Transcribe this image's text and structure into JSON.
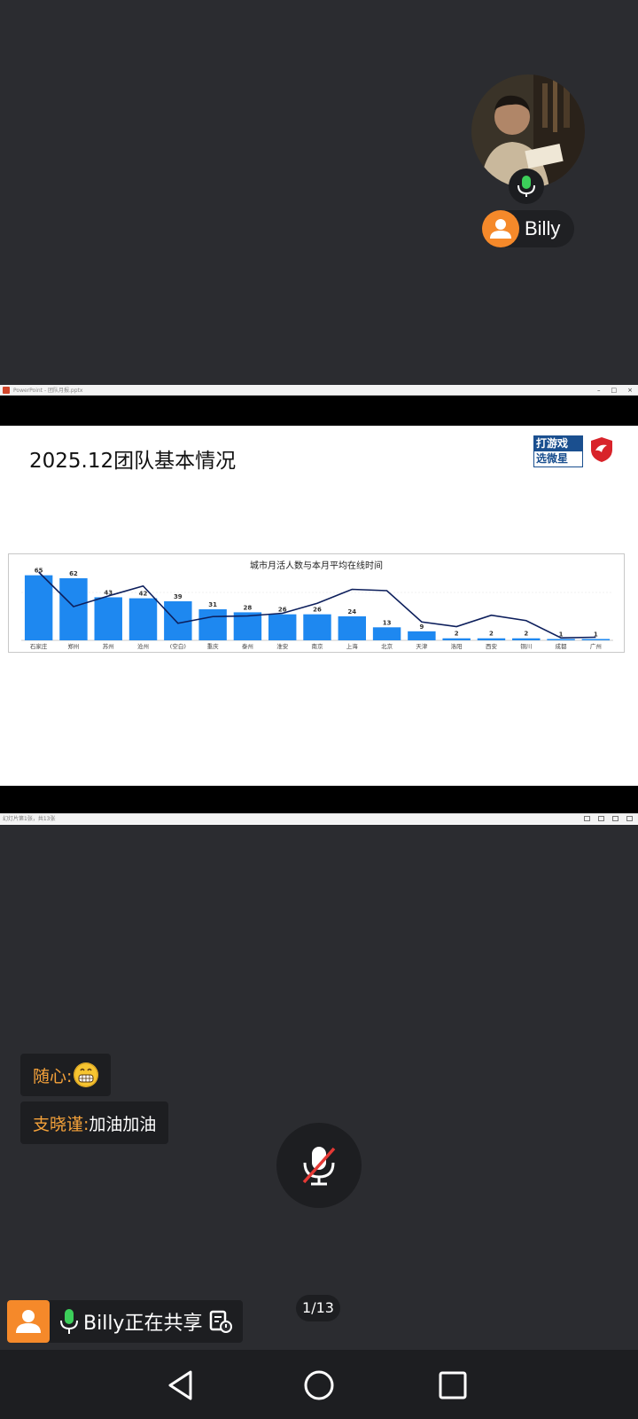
{
  "participant": {
    "name": "Billy",
    "accent": "#f5892a",
    "mic_icon": "mic-active-icon"
  },
  "shared_screen": {
    "window_title": "PowerPoint - 团队月报.pptx",
    "slide_title": "2025.12团队基本情况",
    "logo_text_top": "打游戏",
    "logo_text_bottom": "选微星",
    "status_text": "幻灯片第1张，共13张"
  },
  "chart_data": {
    "type": "bar",
    "title": "城市月活人数与本月平均在线时间",
    "categories": [
      "石家庄",
      "郑州",
      "苏州",
      "沧州",
      "(空白)",
      "重庆",
      "泰州",
      "淮安",
      "南京",
      "上海",
      "北京",
      "天津",
      "洛阳",
      "西安",
      "铜川",
      "成都",
      "广州"
    ],
    "values": [
      65,
      62,
      43,
      42,
      39,
      31,
      28,
      26,
      26,
      24,
      13,
      9,
      2,
      2,
      2,
      1,
      1
    ],
    "line_series": [
      1.0,
      0.48,
      0.64,
      0.79,
      0.23,
      0.33,
      0.34,
      0.38,
      0.53,
      0.74,
      0.72,
      0.25,
      0.18,
      0.35,
      0.27,
      0.01,
      0.02
    ],
    "bar_color": "#1e88f0",
    "line_color": "#0d1f5c",
    "ylim": [
      0,
      70
    ],
    "legend": "none"
  },
  "chat": [
    {
      "sender": "随心:",
      "text": "",
      "emoji": "grin-emoji"
    },
    {
      "sender": "支晓谨:",
      "text": " 加油加油",
      "emoji": ""
    }
  ],
  "controls": {
    "mic_state": "muted",
    "share_status": "Billy正在共享",
    "page_indicator": "1/13"
  },
  "nav": {
    "back": "back-icon",
    "home": "home-icon",
    "recents": "recents-icon"
  }
}
